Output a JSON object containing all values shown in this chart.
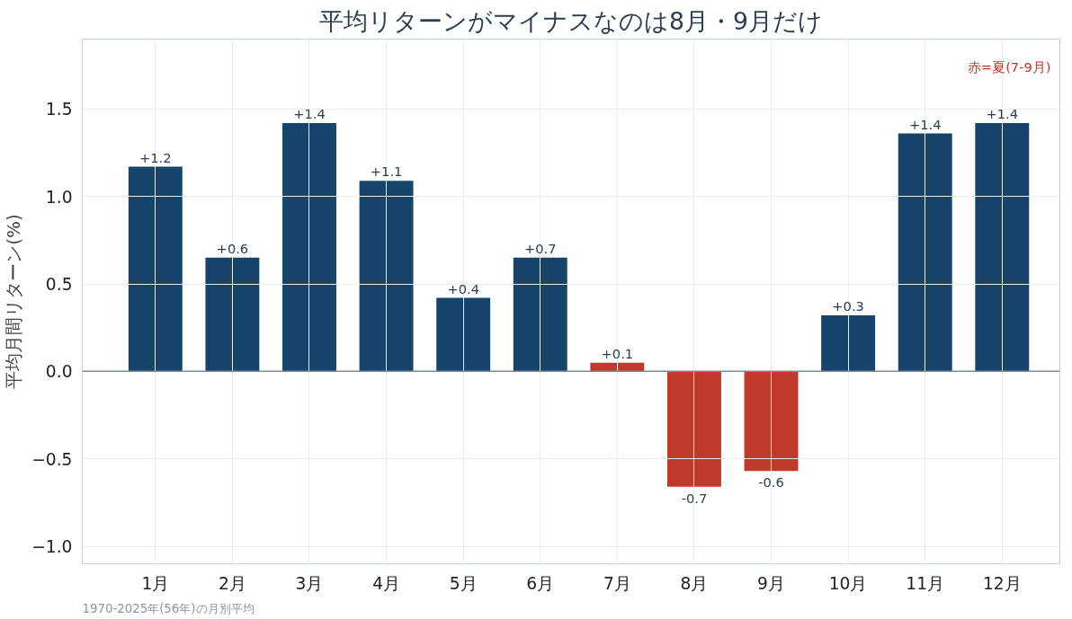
{
  "chart_data": {
    "type": "bar",
    "title": "平均リターンがマイナスなのは8月・9月だけ",
    "ylabel": "平均月間リターン(%)",
    "categories": [
      "1月",
      "2月",
      "3月",
      "4月",
      "5月",
      "6月",
      "7月",
      "8月",
      "9月",
      "10月",
      "11月",
      "12月"
    ],
    "values": [
      1.17,
      0.65,
      1.42,
      1.09,
      0.42,
      0.65,
      0.05,
      -0.66,
      -0.57,
      0.32,
      1.36,
      1.42
    ],
    "value_labels": [
      "+1.2",
      "+0.6",
      "+1.4",
      "+1.1",
      "+0.4",
      "+0.7",
      "+0.1",
      "-0.7",
      "-0.6",
      "+0.3",
      "+1.4",
      "+1.4"
    ],
    "colors": [
      "#17446b",
      "#17446b",
      "#17446b",
      "#17446b",
      "#17446b",
      "#17446b",
      "#c0392b",
      "#c0392b",
      "#c0392b",
      "#17446b",
      "#17446b",
      "#17446b"
    ],
    "ylim": [
      -1.1,
      1.9
    ],
    "yticks": [
      {
        "value": -1.0,
        "label": "−1.0"
      },
      {
        "value": -0.5,
        "label": "−0.5"
      },
      {
        "value": 0.0,
        "label": "0.0"
      },
      {
        "value": 0.5,
        "label": "0.5"
      },
      {
        "value": 1.0,
        "label": "1.0"
      },
      {
        "value": 1.5,
        "label": "1.5"
      }
    ],
    "ref_lines": [
      {
        "axis": "y",
        "value": 0,
        "color": "#7f8c8d"
      }
    ],
    "grid": true,
    "annotations": [
      "赤=夏(7-9月)",
      "1970-2025年(56年)の月別平均"
    ]
  }
}
